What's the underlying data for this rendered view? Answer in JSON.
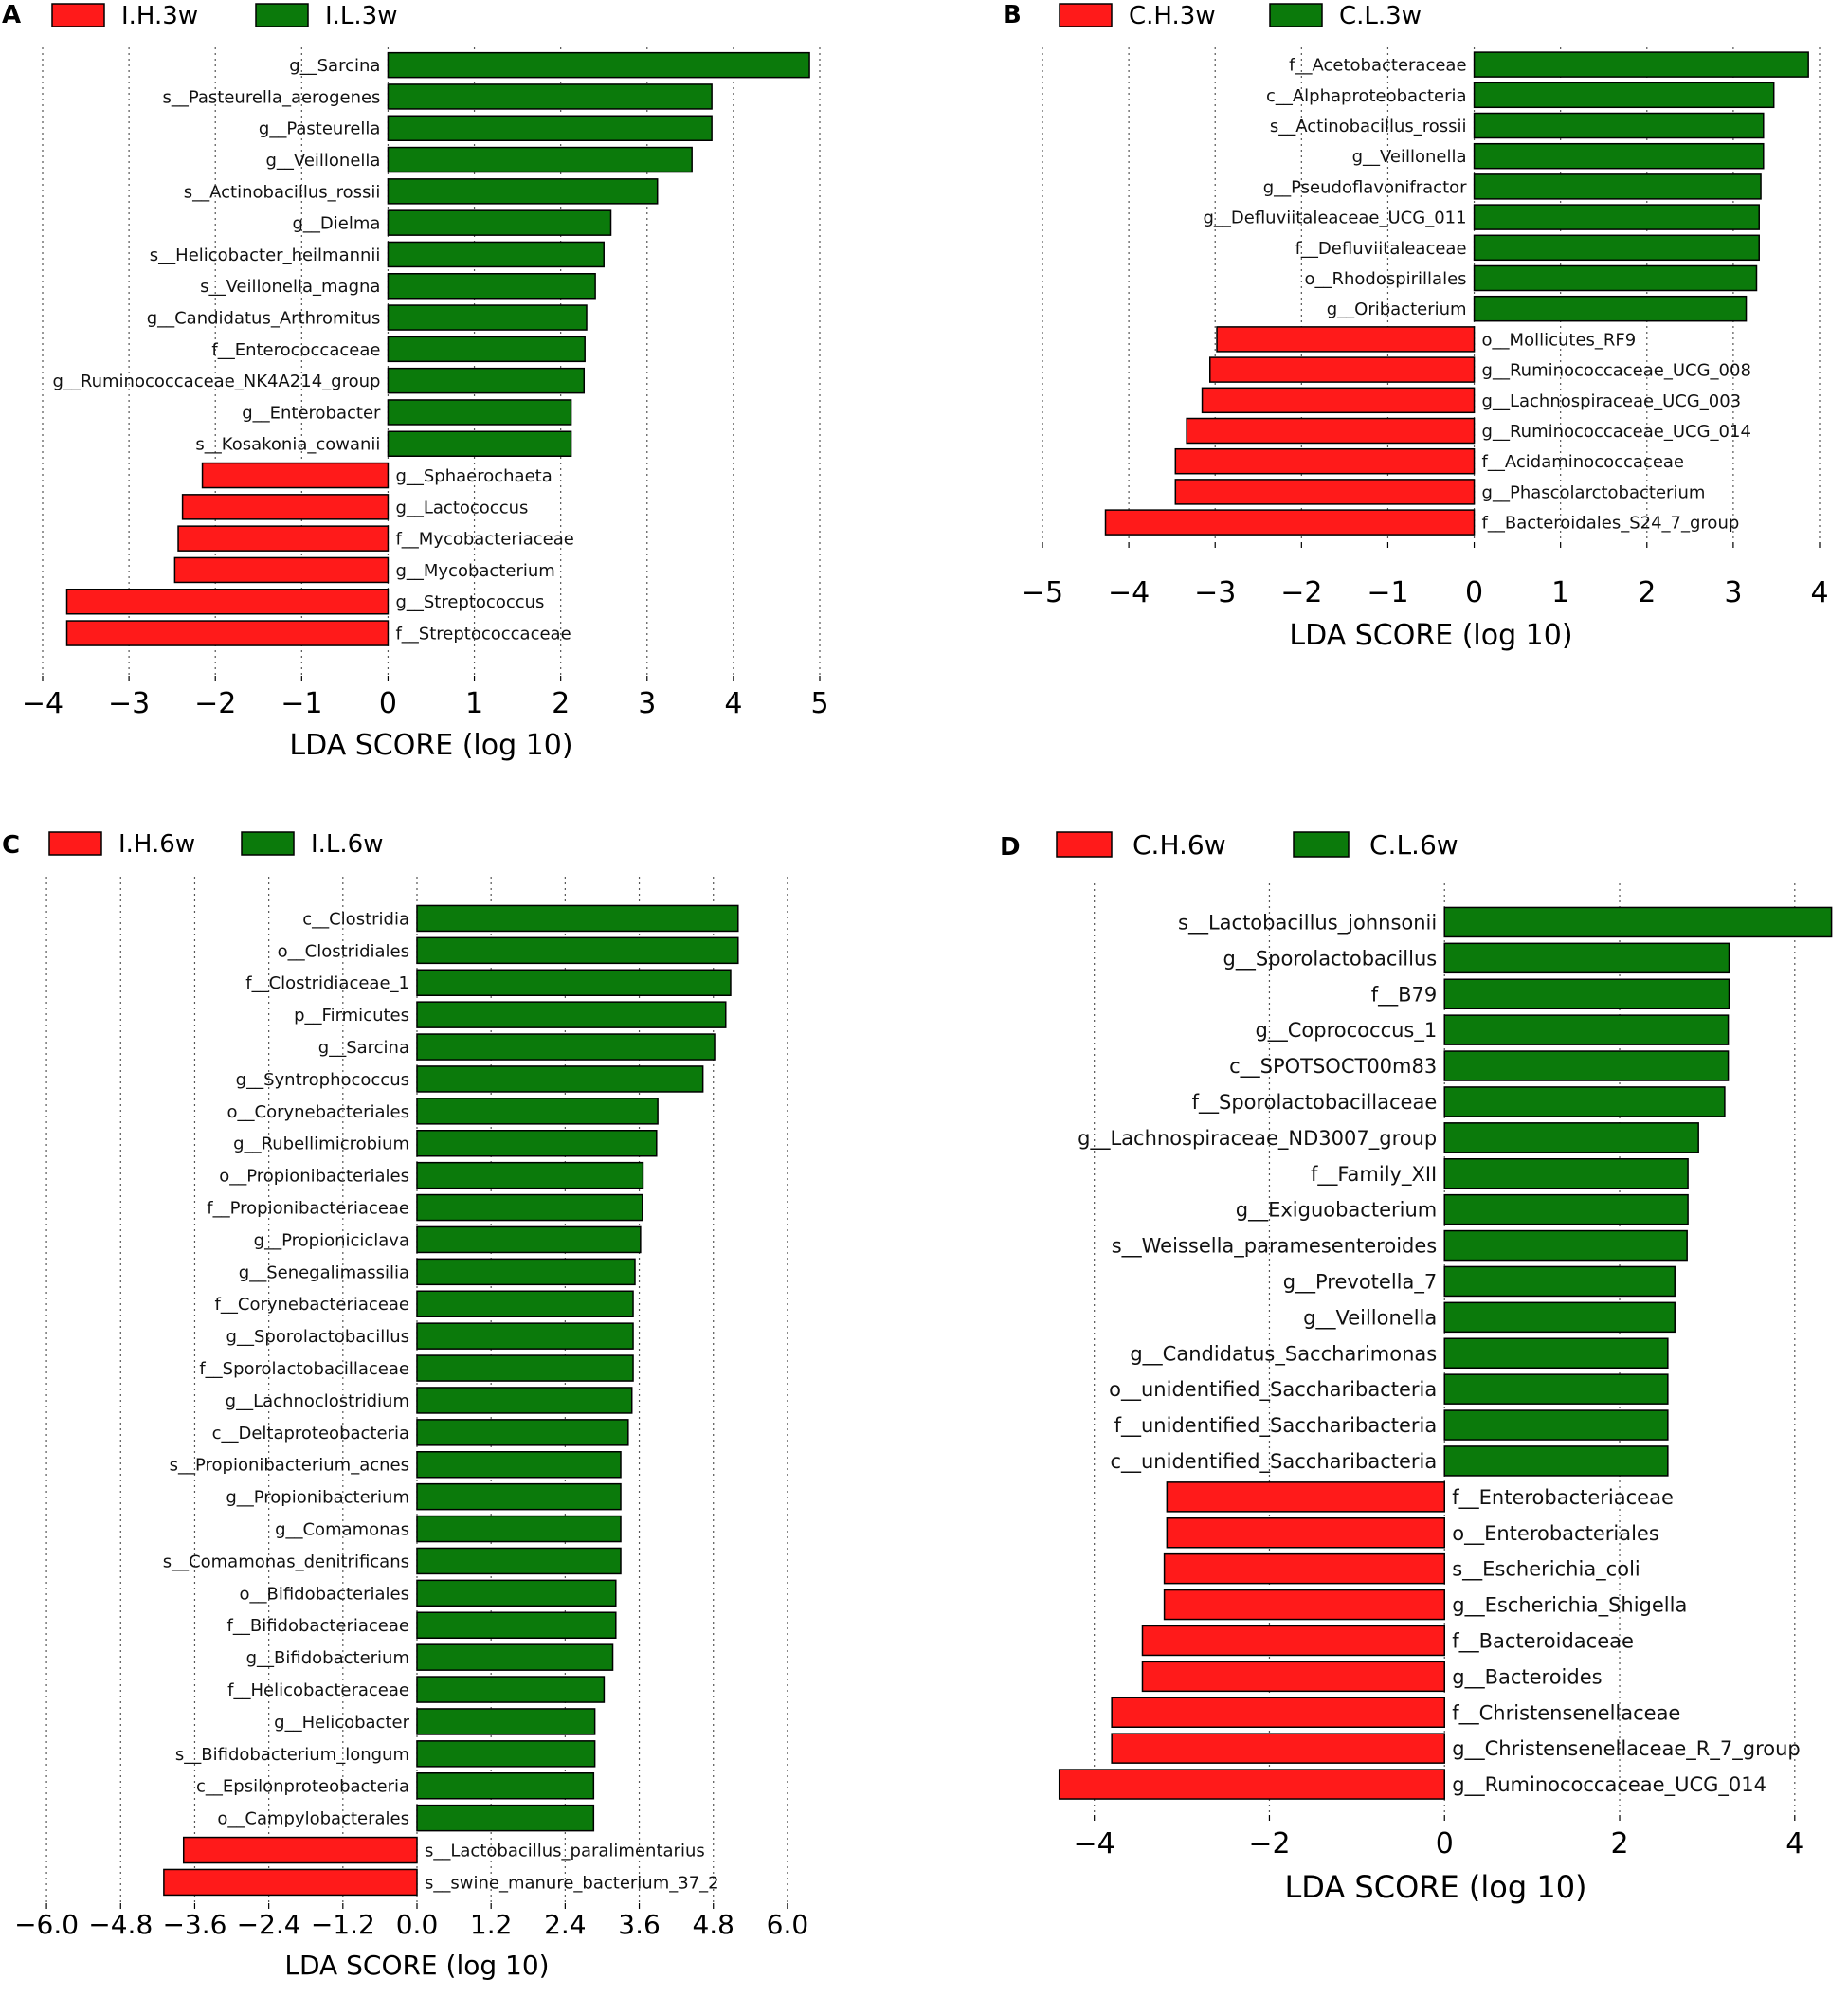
{
  "colors": {
    "high": "#ff1a1a",
    "low": "#0b7a0b",
    "grid": "#555555",
    "border": "#000000"
  },
  "chart_data": [
    {
      "type": "bar",
      "panel_label": "A",
      "legend": [
        "I.H.3w",
        "I.L.3w"
      ],
      "xlabel": "LDA SCORE (log 10)",
      "xlim": [
        -4,
        5
      ],
      "ticks": [
        -4,
        -3,
        -2,
        -1,
        0,
        1,
        2,
        3,
        4,
        5
      ],
      "tick_labels": [
        "−4",
        "−3",
        "−2",
        "−1",
        "0",
        "1",
        "2",
        "3",
        "4",
        "5"
      ],
      "bars": [
        {
          "label": "g__Sarcina",
          "value": 4.88
        },
        {
          "label": "s__Pasteurella_aerogenes",
          "value": 3.75
        },
        {
          "label": "g__Pasteurella",
          "value": 3.75
        },
        {
          "label": "g__Veillonella",
          "value": 3.52
        },
        {
          "label": "s__Actinobacillus_rossii",
          "value": 3.12
        },
        {
          "label": "g__Dielma",
          "value": 2.58
        },
        {
          "label": "s__Helicobacter_heilmannii",
          "value": 2.5
        },
        {
          "label": "s__Veillonella_magna",
          "value": 2.4
        },
        {
          "label": "g__Candidatus_Arthromitus",
          "value": 2.3
        },
        {
          "label": "f__Enterococcaceae",
          "value": 2.28
        },
        {
          "label": "g__Ruminococcaceae_NK4A214_group",
          "value": 2.27
        },
        {
          "label": "g__Enterobacter",
          "value": 2.12
        },
        {
          "label": "s__Kosakonia_cowanii",
          "value": 2.12
        },
        {
          "label": "g__Sphaerochaeta",
          "value": -2.15
        },
        {
          "label": "g__Lactococcus",
          "value": -2.38
        },
        {
          "label": "f__Mycobacteriaceae",
          "value": -2.43
        },
        {
          "label": "g__Mycobacterium",
          "value": -2.47
        },
        {
          "label": "g__Streptococcus",
          "value": -3.72
        },
        {
          "label": "f__Streptococcaceae",
          "value": -3.72
        }
      ]
    },
    {
      "type": "bar",
      "panel_label": "B",
      "legend": [
        "C.H.3w",
        "C.L.3w"
      ],
      "xlabel": "LDA SCORE (log 10)",
      "xlim": [
        -5,
        4
      ],
      "ticks": [
        -5,
        -4,
        -3,
        -2,
        -1,
        0,
        1,
        2,
        3,
        4
      ],
      "tick_labels": [
        "−5",
        "−4",
        "−3",
        "−2",
        "−1",
        "0",
        "1",
        "2",
        "3",
        "4"
      ],
      "bars": [
        {
          "label": "f__Acetobacteraceae",
          "value": 3.87
        },
        {
          "label": "c__Alphaproteobacteria",
          "value": 3.47
        },
        {
          "label": "s__Actinobacillus_rossii",
          "value": 3.35
        },
        {
          "label": "g__Veillonella",
          "value": 3.35
        },
        {
          "label": "g__Pseudoflavonifractor",
          "value": 3.32
        },
        {
          "label": "g__Defluviitaleaceae_UCG_011",
          "value": 3.3
        },
        {
          "label": "f__Defluviitaleaceae",
          "value": 3.3
        },
        {
          "label": "o__Rhodospirillales",
          "value": 3.27
        },
        {
          "label": "g__Oribacterium",
          "value": 3.15
        },
        {
          "label": "o__Mollicutes_RF9",
          "value": -2.98
        },
        {
          "label": "g__Ruminococcaceae_UCG_008",
          "value": -3.06
        },
        {
          "label": "g__Lachnospiraceae_UCG_003",
          "value": -3.15
        },
        {
          "label": "g__Ruminococcaceae_UCG_014",
          "value": -3.33
        },
        {
          "label": "f__Acidaminococcaceae",
          "value": -3.46
        },
        {
          "label": "g__Phascolarctobacterium",
          "value": -3.46
        },
        {
          "label": "f__Bacteroidales_S24_7_group",
          "value": -4.27
        }
      ]
    },
    {
      "type": "bar",
      "panel_label": "C",
      "legend": [
        "I.H.6w",
        "I.L.6w"
      ],
      "xlabel": "LDA SCORE (log 10)",
      "xlim": [
        -6.6,
        6.6
      ],
      "ticks": [
        -6,
        -4.8,
        -3.6,
        -2.4,
        -1.2,
        0,
        1.2,
        2.4,
        3.6,
        4.8,
        6
      ],
      "tick_labels": [
        "−6.0",
        "−4.8",
        "−3.6",
        "−2.4",
        "−1.2",
        "0.0",
        "1.2",
        "2.4",
        "3.6",
        "4.8",
        "6.0"
      ],
      "bars": [
        {
          "label": "c__Clostridia",
          "value": 5.2
        },
        {
          "label": "o__Clostridiales",
          "value": 5.2
        },
        {
          "label": "f__Clostridiaceae_1",
          "value": 5.08
        },
        {
          "label": "p__Firmicutes",
          "value": 5.0
        },
        {
          "label": "g__Sarcina",
          "value": 4.82
        },
        {
          "label": "g__Syntrophococcus",
          "value": 4.63
        },
        {
          "label": "o__Corynebacteriales",
          "value": 3.9
        },
        {
          "label": "g__Rubellimicrobium",
          "value": 3.88
        },
        {
          "label": "o__Propionibacteriales",
          "value": 3.66
        },
        {
          "label": "f__Propionibacteriaceae",
          "value": 3.65
        },
        {
          "label": "g__Propioniciclava",
          "value": 3.62
        },
        {
          "label": "g__Senegalimassilia",
          "value": 3.53
        },
        {
          "label": "f__Corynebacteriaceae",
          "value": 3.5
        },
        {
          "label": "g__Sporolactobacillus",
          "value": 3.5
        },
        {
          "label": "f__Sporolactobacillaceae",
          "value": 3.5
        },
        {
          "label": "g__Lachnoclostridium",
          "value": 3.48
        },
        {
          "label": "c__Deltaproteobacteria",
          "value": 3.42
        },
        {
          "label": "s__Propionibacterium_acnes",
          "value": 3.3
        },
        {
          "label": "g__Propionibacterium",
          "value": 3.3
        },
        {
          "label": "g__Comamonas",
          "value": 3.3
        },
        {
          "label": "s__Comamonas_denitrificans",
          "value": 3.3
        },
        {
          "label": "o__Bifidobacteriales",
          "value": 3.22
        },
        {
          "label": "f__Bifidobacteriaceae",
          "value": 3.22
        },
        {
          "label": "g__Bifidobacterium",
          "value": 3.17
        },
        {
          "label": "f__Helicobacteraceae",
          "value": 3.03
        },
        {
          "label": "g__Helicobacter",
          "value": 2.88
        },
        {
          "label": "s__Bifidobacterium_longum",
          "value": 2.88
        },
        {
          "label": "c__Epsilonproteobacteria",
          "value": 2.86
        },
        {
          "label": "o__Campylobacterales",
          "value": 2.86
        },
        {
          "label": "s__Lactobacillus_paralimentarius",
          "value": -3.78
        },
        {
          "label": "s__swine_manure_bacterium_37_2",
          "value": -4.1
        }
      ]
    },
    {
      "type": "bar",
      "panel_label": "D",
      "legend": [
        "C.H.6w",
        "C.L.6w"
      ],
      "xlabel": "LDA SCORE (log 10)",
      "xlim": [
        -4.7,
        4.5
      ],
      "ticks": [
        -4,
        -2,
        0,
        2,
        4
      ],
      "tick_labels": [
        "−4",
        "−2",
        "0",
        "2",
        "4"
      ],
      "bars": [
        {
          "label": "s__Lactobacillus_johnsonii",
          "value": 4.42
        },
        {
          "label": "g__Sporolactobacillus",
          "value": 3.25
        },
        {
          "label": "f__B79",
          "value": 3.25
        },
        {
          "label": "g__Coprococcus_1",
          "value": 3.24
        },
        {
          "label": "c__SPOTSOCT00m83",
          "value": 3.24
        },
        {
          "label": "f__Sporolactobacillaceae",
          "value": 3.2
        },
        {
          "label": "g__Lachnospiraceae_ND3007_group",
          "value": 2.9
        },
        {
          "label": "f__Family_XII",
          "value": 2.78
        },
        {
          "label": "g__Exiguobacterium",
          "value": 2.78
        },
        {
          "label": "s__Weissella_paramesenteroides",
          "value": 2.77
        },
        {
          "label": "g__Prevotella_7",
          "value": 2.63
        },
        {
          "label": "g__Veillonella",
          "value": 2.63
        },
        {
          "label": "g__Candidatus_Saccharimonas",
          "value": 2.55
        },
        {
          "label": "o__unidentified_Saccharibacteria",
          "value": 2.55
        },
        {
          "label": "f__unidentified_Saccharibacteria",
          "value": 2.55
        },
        {
          "label": "c__unidentified_Saccharibacteria",
          "value": 2.55
        },
        {
          "label": "f__Enterobacteriaceae",
          "value": -3.17
        },
        {
          "label": "o__Enterobacteriales",
          "value": -3.17
        },
        {
          "label": "s__Escherichia_coli",
          "value": -3.2
        },
        {
          "label": "g__Escherichia_Shigella",
          "value": -3.2
        },
        {
          "label": "f__Bacteroidaceae",
          "value": -3.45
        },
        {
          "label": "g__Bacteroides",
          "value": -3.45
        },
        {
          "label": "f__Christensenellaceae",
          "value": -3.8
        },
        {
          "label": "g__Christensenellaceae_R_7_group",
          "value": -3.8
        },
        {
          "label": "g__Ruminococcaceae_UCG_014",
          "value": -4.4
        }
      ]
    }
  ]
}
